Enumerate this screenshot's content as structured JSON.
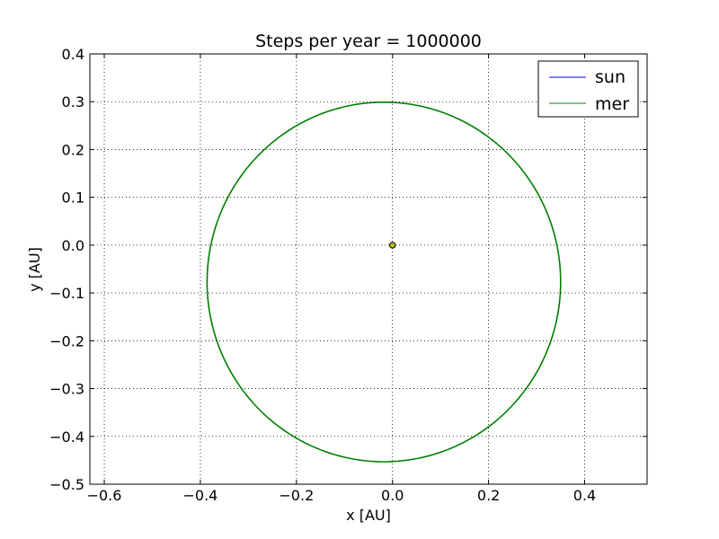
{
  "chart_data": {
    "type": "line",
    "title": "Steps per year = 1000000",
    "xlabel": "x [AU]",
    "ylabel": "y [AU]",
    "xlim": [
      -0.63,
      0.53
    ],
    "ylim": [
      -0.5,
      0.4
    ],
    "xticks": [
      -0.6,
      -0.4,
      -0.2,
      0.0,
      0.2,
      0.4
    ],
    "xtick_labels": [
      "−0.6",
      "−0.4",
      "−0.2",
      "0.0",
      "0.2",
      "0.4"
    ],
    "yticks": [
      0.4,
      0.3,
      0.2,
      0.1,
      0.0,
      -0.1,
      -0.2,
      -0.3,
      -0.4,
      -0.5
    ],
    "ytick_labels": [
      "0.4",
      "0.3",
      "0.2",
      "0.1",
      "0.0",
      "−0.1",
      "−0.2",
      "−0.3",
      "−0.4",
      "−0.5"
    ],
    "grid": true,
    "legend_position": "top-right",
    "series": [
      {
        "name": "sun",
        "color": "#0000ff",
        "points": [
          [
            0.0,
            0.0
          ]
        ],
        "marker": {
          "x": 0.0,
          "y": 0.0,
          "fill": "#bfbf00",
          "edge": "#000000"
        }
      },
      {
        "name": "mer",
        "color": "#008000",
        "orbit": {
          "center_x": -0.018,
          "center_y": -0.077,
          "radius_x": 0.368,
          "radius_y": 0.376
        }
      }
    ]
  }
}
